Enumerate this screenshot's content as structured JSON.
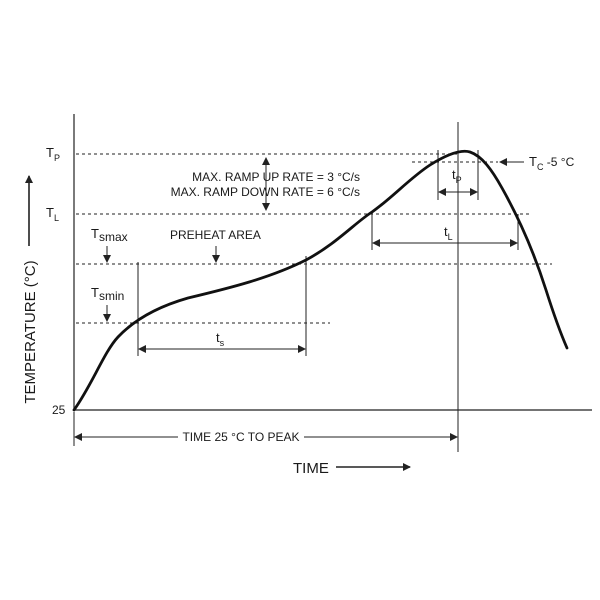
{
  "diagram": {
    "y_axis_label": "TEMPERATURE (°C)",
    "x_axis_label": "TIME",
    "y_levels": {
      "tp": {
        "main": "T",
        "sub": "P"
      },
      "tl": {
        "main": "T",
        "sub": "L"
      },
      "tsmax": {
        "main": "T",
        "sub": "smax"
      },
      "tsmin": {
        "main": "T",
        "sub": "smin"
      },
      "base": "25"
    },
    "tc_label": {
      "main": "T",
      "sub": "C",
      "suffix": " -5 °C"
    },
    "ramp_up": "MAX. RAMP UP RATE = 3 °C/s",
    "ramp_down": "MAX. RAMP DOWN RATE = 6 °C/s",
    "preheat": "PREHEAT AREA",
    "ts": {
      "main": "t",
      "sub": "s"
    },
    "tp_dur": {
      "main": "t",
      "sub": "P"
    },
    "tl_dur": {
      "main": "t",
      "sub": "L"
    },
    "time_to_peak": "TIME 25 °C TO PEAK"
  }
}
